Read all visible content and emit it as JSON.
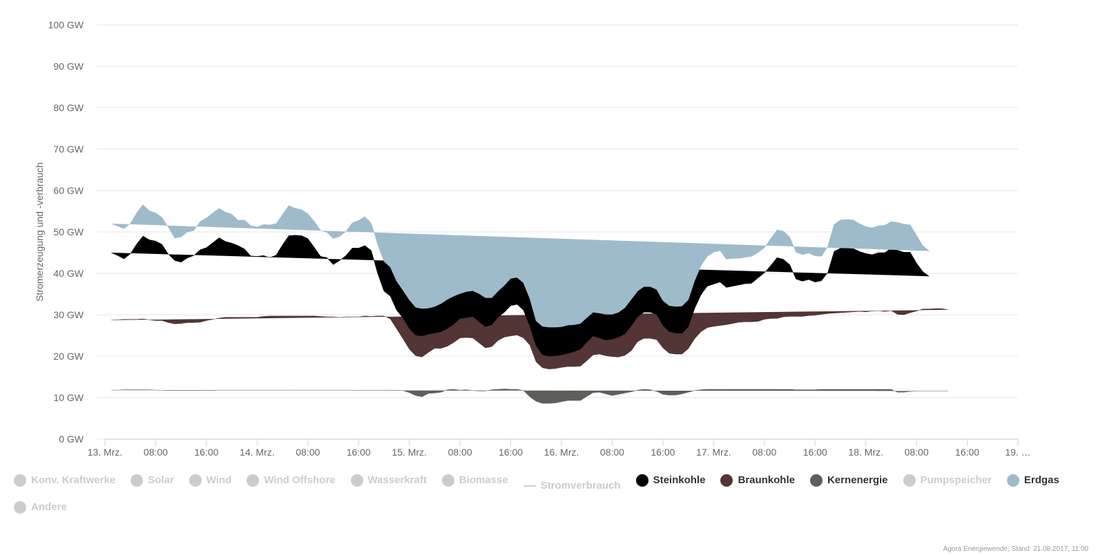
{
  "chart_data": {
    "type": "area",
    "stacked": true,
    "ylabel": "Stromerzeugung und -verbrauch",
    "ylim": [
      0,
      100
    ],
    "yticks": [
      "0 GW",
      "10 GW",
      "20 GW",
      "30 GW",
      "40 GW",
      "50 GW",
      "60 GW",
      "70 GW",
      "80 GW",
      "90 GW",
      "100 GW"
    ],
    "x_range_hours": [
      0,
      144
    ],
    "xticks": [
      {
        "hour": 0,
        "label": "13. Mrz."
      },
      {
        "hour": 8,
        "label": "08:00"
      },
      {
        "hour": 16,
        "label": "16:00"
      },
      {
        "hour": 24,
        "label": "14. Mrz."
      },
      {
        "hour": 32,
        "label": "08:00"
      },
      {
        "hour": 40,
        "label": "16:00"
      },
      {
        "hour": 48,
        "label": "15. Mrz."
      },
      {
        "hour": 56,
        "label": "08:00"
      },
      {
        "hour": 64,
        "label": "16:00"
      },
      {
        "hour": 72,
        "label": "16. Mrz."
      },
      {
        "hour": 80,
        "label": "08:00"
      },
      {
        "hour": 88,
        "label": "16:00"
      },
      {
        "hour": 96,
        "label": "17. Mrz."
      },
      {
        "hour": 104,
        "label": "08:00"
      },
      {
        "hour": 112,
        "label": "16:00"
      },
      {
        "hour": 120,
        "label": "18. Mrz."
      },
      {
        "hour": 128,
        "label": "08:00"
      },
      {
        "hour": 136,
        "label": "16:00"
      },
      {
        "hour": 144,
        "label": "19. …"
      }
    ],
    "x_hours": [
      1,
      2,
      3,
      4,
      5,
      6,
      7,
      8,
      9,
      10,
      11,
      12,
      13,
      14,
      15,
      16,
      17,
      18,
      19,
      20,
      21,
      22,
      23,
      24,
      25,
      26,
      27,
      28,
      29,
      30,
      31,
      32,
      33,
      34,
      35,
      36,
      37,
      38,
      39,
      40,
      41,
      42,
      43,
      44,
      45,
      46,
      47,
      48,
      49,
      50,
      51,
      52,
      53,
      54,
      55,
      56,
      57,
      58,
      59,
      60,
      61,
      62,
      63,
      64,
      65,
      66,
      67,
      68,
      69,
      70,
      71,
      72,
      73,
      74,
      75,
      76,
      77,
      78,
      79,
      80,
      81,
      82,
      83,
      84,
      85,
      86,
      87,
      88,
      89,
      90,
      91,
      92,
      93,
      94,
      95,
      96,
      97,
      98,
      99,
      100,
      101,
      102,
      103,
      104,
      105,
      106,
      107,
      108,
      109,
      110,
      111,
      112,
      113,
      114,
      115,
      116,
      117,
      118,
      119,
      120,
      121,
      122,
      123,
      124,
      125,
      126,
      127,
      128,
      129,
      130,
      131,
      132,
      133,
      134,
      135,
      136,
      137,
      138,
      139,
      140,
      141,
      142,
      143
    ],
    "series": [
      {
        "name": "Kernenergie",
        "color": "#5e5f5b",
        "values": [
          11.8,
          11.8,
          11.9,
          11.9,
          11.9,
          11.9,
          11.9,
          11.8,
          11.8,
          11.7,
          11.7,
          11.7,
          11.7,
          11.7,
          11.7,
          11.7,
          11.7,
          11.8,
          11.8,
          11.8,
          11.8,
          11.8,
          11.8,
          11.8,
          11.8,
          11.8,
          11.8,
          11.8,
          11.8,
          11.8,
          11.8,
          11.8,
          11.8,
          11.8,
          11.8,
          11.8,
          11.8,
          11.8,
          11.8,
          11.8,
          11.8,
          11.8,
          11.8,
          11.8,
          11.8,
          11.8,
          11.7,
          11.2,
          10.5,
          10.2,
          11.0,
          11.1,
          11.3,
          11.9,
          12.0,
          11.8,
          11.9,
          11.7,
          11.6,
          11.6,
          11.9,
          12.0,
          12.1,
          12.0,
          12.0,
          11.7,
          10.2,
          9.1,
          8.6,
          8.6,
          8.7,
          9.0,
          9.3,
          9.3,
          9.3,
          10.3,
          11.2,
          11.3,
          10.9,
          10.5,
          10.8,
          11.1,
          11.4,
          11.8,
          12.0,
          11.9,
          11.5,
          10.8,
          10.6,
          10.6,
          10.9,
          11.3,
          11.7,
          11.9,
          12.0,
          12.0,
          12.0,
          12.0,
          12.0,
          12.0,
          12.0,
          12.0,
          12.0,
          12.0,
          12.0,
          12.0,
          12.0,
          12.0,
          11.9,
          11.9,
          11.9,
          11.9,
          12.0,
          12.0,
          12.0,
          12.0,
          12.0,
          12.0,
          12.0,
          12.0,
          12.0,
          12.0,
          12.0,
          12.0,
          11.3,
          11.3,
          11.5,
          11.6,
          11.6,
          11.6,
          11.6,
          11.6,
          11.6
        ]
      },
      {
        "name": "Braunkohle",
        "color": "#523534",
        "values": [
          16.9,
          17.0,
          17.0,
          17.0,
          17.0,
          17.1,
          16.9,
          16.8,
          16.8,
          16.4,
          16.1,
          16.2,
          16.4,
          16.4,
          16.5,
          16.9,
          17.2,
          17.4,
          17.6,
          17.6,
          17.6,
          17.6,
          17.6,
          17.6,
          17.8,
          17.9,
          17.9,
          17.9,
          17.9,
          17.9,
          17.9,
          17.9,
          17.9,
          17.8,
          17.7,
          17.7,
          17.6,
          17.7,
          17.7,
          17.7,
          17.9,
          17.8,
          17.9,
          17.9,
          17.2,
          14.8,
          12.5,
          10.5,
          9.6,
          9.6,
          9.9,
          10.8,
          10.6,
          10.5,
          11.3,
          12.6,
          12.6,
          12.7,
          11.6,
          10.4,
          10.4,
          11.8,
          12.5,
          12.9,
          13.1,
          12.7,
          12.5,
          9.5,
          8.6,
          8.3,
          8.3,
          8.3,
          8.2,
          8.2,
          8.3,
          8.6,
          9.1,
          9.2,
          9.2,
          9.4,
          9.0,
          9.1,
          9.9,
          11.7,
          12.3,
          12.4,
          12.5,
          11.2,
          10.1,
          9.9,
          9.6,
          10.5,
          12.5,
          14.0,
          14.9,
          15.2,
          15.4,
          15.6,
          15.9,
          16.2,
          16.3,
          16.3,
          16.4,
          16.9,
          17.1,
          17.1,
          17.5,
          17.6,
          17.7,
          17.7,
          17.9,
          18.0,
          18.1,
          18.3,
          18.4,
          18.5,
          18.6,
          18.7,
          18.8,
          18.7,
          18.9,
          19.0,
          18.8,
          19.0,
          18.8,
          18.7,
          19.0,
          19.3,
          19.8,
          19.8,
          19.9,
          19.9,
          19.6
        ]
      },
      {
        "name": "Steinkohle",
        "color": "#000000",
        "values": [
          16.3,
          15.5,
          14.6,
          15.8,
          18.2,
          20.0,
          19.3,
          19.2,
          18.4,
          16.5,
          15.3,
          14.8,
          15.6,
          16.2,
          17.5,
          17.6,
          18.5,
          19.4,
          18.3,
          17.9,
          17.3,
          16.5,
          14.8,
          14.7,
          14.7,
          14.1,
          14.7,
          17.2,
          19.4,
          19.5,
          19.4,
          18.7,
          16.6,
          14.5,
          14.3,
          12.6,
          13.7,
          14.8,
          16.6,
          16.6,
          17.0,
          15.9,
          10.3,
          6.0,
          5.5,
          4.5,
          5.0,
          5.0,
          5.0,
          5.1,
          4.4,
          3.7,
          4.0,
          4.3,
          4.4,
          4.7,
          4.8,
          5.2,
          5.1,
          5.1,
          5.3,
          5.6,
          6.0,
          7.3,
          7.4,
          6.7,
          4.6,
          3.9,
          3.2,
          3.1,
          3.1,
          3.0,
          3.2,
          3.6,
          4.1,
          4.5,
          4.6,
          3.9,
          3.8,
          4.2,
          4.8,
          5.2,
          6.0,
          6.0,
          6.3,
          6.3,
          6.1,
          5.4,
          5.2,
          5.1,
          5.0,
          5.3,
          7.3,
          8.9,
          10.0,
          10.2,
          10.5,
          9.0,
          9.0,
          9.0,
          9.2,
          9.3,
          10.5,
          11.2,
          12.8,
          14.7,
          13.9,
          12.5,
          9.0,
          8.5,
          8.7,
          8.0,
          8.1,
          9.9,
          14.9,
          15.6,
          15.5,
          15.3,
          14.5,
          14.1,
          13.6,
          14.0,
          14.2,
          15.1,
          15.5,
          15.1,
          14.6,
          11.6,
          9.0,
          7.9
        ]
      },
      {
        "name": "Erdgas",
        "color": "#9ebbcb",
        "values": [
          7.0,
          7.1,
          7.3,
          7.3,
          7.5,
          7.6,
          7.0,
          6.8,
          6.5,
          6.5,
          5.4,
          6.1,
          6.3,
          6.0,
          6.8,
          7.2,
          7.2,
          7.1,
          7.1,
          7.0,
          6.1,
          7.0,
          7.3,
          7.1,
          7.5,
          7.9,
          7.6,
          7.3,
          7.3,
          6.5,
          6.3,
          6.0,
          6.3,
          6.3,
          6.1,
          6.3,
          5.8,
          5.8,
          6.1,
          6.7,
          7.0,
          6.6,
          7.0,
          7.2,
          7.0,
          7.0,
          6.7,
          6.9,
          6.7,
          6.6,
          6.3,
          6.4,
          6.8,
          7.0,
          6.8,
          6.0,
          6.3,
          6.2,
          6.8,
          7.0,
          6.5,
          6.3,
          6.5,
          6.6,
          6.5,
          6.6,
          6.6,
          6.0,
          6.8,
          7.0,
          6.9,
          6.8,
          6.8,
          6.5,
          6.2,
          5.9,
          5.7,
          6.0,
          6.2,
          6.0,
          6.0,
          6.3,
          6.4,
          6.2,
          6.2,
          6.2,
          6.0,
          6.0,
          6.3,
          6.4,
          6.6,
          6.5,
          6.7,
          7.0,
          7.2,
          7.7,
          7.6,
          6.8,
          6.7,
          6.4,
          6.4,
          6.5,
          6.1,
          6.1,
          6.5,
          6.7,
          6.8,
          6.7,
          6.5,
          6.4,
          6.4,
          6.3,
          5.9,
          6.3,
          6.5,
          6.8,
          6.9,
          6.9,
          6.7,
          6.5,
          6.5,
          6.5,
          6.6,
          6.4,
          6.7,
          6.8,
          6.6,
          6.7,
          6.3,
          6.1,
          5.8
        ]
      }
    ],
    "legend": [
      {
        "label": "Konv. Kraftwerke",
        "active": false,
        "marker": "dot"
      },
      {
        "label": "Solar",
        "active": false,
        "marker": "dot"
      },
      {
        "label": "Wind",
        "active": false,
        "marker": "dot"
      },
      {
        "label": "Wind Offshore",
        "active": false,
        "marker": "dot"
      },
      {
        "label": "Wasserkraft",
        "active": false,
        "marker": "dot"
      },
      {
        "label": "Biomasse",
        "active": false,
        "marker": "dot"
      },
      {
        "label": "Stromverbrauch",
        "active": false,
        "marker": "line"
      },
      {
        "label": "Steinkohle",
        "active": true,
        "marker": "dot",
        "color": "#000000"
      },
      {
        "label": "Braunkohle",
        "active": true,
        "marker": "dot",
        "color": "#523534"
      },
      {
        "label": "Kernenergie",
        "active": true,
        "marker": "dot",
        "color": "#5e5f5b"
      },
      {
        "label": "Pumpspeicher",
        "active": false,
        "marker": "dot"
      },
      {
        "label": "Erdgas",
        "active": true,
        "marker": "dot",
        "color": "#9ebbcb"
      },
      {
        "label": "Andere",
        "active": false,
        "marker": "dot"
      }
    ],
    "grid": true,
    "legend_placement": "bottom"
  },
  "credits": "Agora Energiewende; Stand: 21.08.2017, 11:00"
}
